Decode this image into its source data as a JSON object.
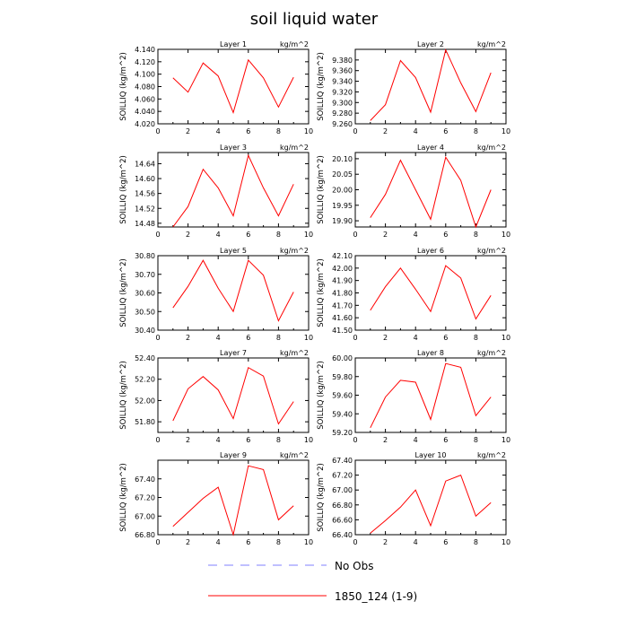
{
  "title": "soil liquid water",
  "chart_data": {
    "type": "line",
    "title": "soil liquid water",
    "ylabel": "SOILLIQ  (kg/m^2)",
    "units": "kg/m^2",
    "xlim": [
      0,
      10
    ],
    "xticks": [
      0,
      2,
      4,
      6,
      8,
      10
    ],
    "x": [
      1,
      2,
      3,
      4,
      5,
      6,
      7,
      8,
      9
    ],
    "grid": false,
    "panels": [
      {
        "title": "Layer 1",
        "ylim": [
          4.02,
          4.14
        ],
        "yticks": [
          4.02,
          4.04,
          4.06,
          4.08,
          4.1,
          4.12,
          4.14
        ],
        "ytick_labels": [
          "4.020",
          "4.040",
          "4.060",
          "4.080",
          "4.100",
          "4.120",
          "4.140"
        ],
        "values": [
          4.094,
          4.071,
          4.118,
          4.097,
          4.038,
          4.123,
          4.094,
          4.047,
          4.095
        ]
      },
      {
        "title": "Layer 2",
        "ylim": [
          9.26,
          9.4
        ],
        "yticks": [
          9.26,
          9.28,
          9.3,
          9.32,
          9.34,
          9.36,
          9.38
        ],
        "ytick_labels": [
          "9.260",
          "9.280",
          "9.300",
          "9.320",
          "9.340",
          "9.360",
          "9.380"
        ],
        "values": [
          9.266,
          9.296,
          9.379,
          9.347,
          9.282,
          9.399,
          9.337,
          9.283,
          9.356
        ]
      },
      {
        "title": "Layer 3",
        "ylim": [
          14.47,
          14.67
        ],
        "yticks": [
          14.48,
          14.52,
          14.56,
          14.6,
          14.64
        ],
        "ytick_labels": [
          "14.48",
          "14.52",
          "14.56",
          "14.60",
          "14.64"
        ],
        "values": [
          14.47,
          14.525,
          14.625,
          14.575,
          14.5,
          14.662,
          14.575,
          14.5,
          14.585
        ]
      },
      {
        "title": "Layer 4",
        "ylim": [
          19.88,
          20.12
        ],
        "yticks": [
          19.9,
          19.95,
          20.0,
          20.05,
          20.1
        ],
        "ytick_labels": [
          "19.90",
          "19.95",
          "20.00",
          "20.05",
          "20.10"
        ],
        "values": [
          19.91,
          19.985,
          20.095,
          20.0,
          19.905,
          20.105,
          20.03,
          19.88,
          20.0
        ]
      },
      {
        "title": "Layer 5",
        "ylim": [
          30.4,
          30.8
        ],
        "yticks": [
          30.4,
          30.5,
          30.6,
          30.7,
          30.8
        ],
        "ytick_labels": [
          "30.40",
          "30.50",
          "30.60",
          "30.70",
          "30.80"
        ],
        "values": [
          30.52,
          30.635,
          30.775,
          30.625,
          30.5,
          30.775,
          30.695,
          30.45,
          30.605
        ]
      },
      {
        "title": "Layer 6",
        "ylim": [
          41.5,
          42.1
        ],
        "yticks": [
          41.5,
          41.6,
          41.7,
          41.8,
          41.9,
          42.0,
          42.1
        ],
        "ytick_labels": [
          "41.50",
          "41.60",
          "41.70",
          "41.80",
          "41.90",
          "42.00",
          "42.10"
        ],
        "values": [
          41.66,
          41.85,
          42.0,
          41.83,
          41.65,
          42.02,
          41.92,
          41.59,
          41.78
        ]
      },
      {
        "title": "Layer 7",
        "ylim": [
          51.7,
          52.4
        ],
        "yticks": [
          51.8,
          52.0,
          52.2,
          52.4
        ],
        "ytick_labels": [
          "51.80",
          "52.00",
          "52.20",
          "52.40"
        ],
        "values": [
          51.81,
          52.11,
          52.225,
          52.1,
          51.83,
          52.31,
          52.23,
          51.78,
          51.99
        ]
      },
      {
        "title": "Layer 8",
        "ylim": [
          59.2,
          60.0
        ],
        "yticks": [
          59.2,
          59.4,
          59.6,
          59.8,
          60.0
        ],
        "ytick_labels": [
          "59.20",
          "59.40",
          "59.60",
          "59.80",
          "60.00"
        ],
        "values": [
          59.25,
          59.58,
          59.76,
          59.74,
          59.34,
          59.94,
          59.9,
          59.38,
          59.58
        ]
      },
      {
        "title": "Layer 9",
        "ylim": [
          66.8,
          67.6
        ],
        "yticks": [
          66.8,
          67.0,
          67.2,
          67.4
        ],
        "ytick_labels": [
          "66.80",
          "67.00",
          "67.20",
          "67.40"
        ],
        "values": [
          66.89,
          67.04,
          67.19,
          67.31,
          66.8,
          67.54,
          67.5,
          66.96,
          67.11
        ]
      },
      {
        "title": "Layer 10",
        "ylim": [
          66.4,
          67.4
        ],
        "yticks": [
          66.4,
          66.6,
          66.8,
          67.0,
          67.2,
          67.4
        ],
        "ytick_labels": [
          "66.40",
          "66.60",
          "66.80",
          "67.00",
          "67.20",
          "67.40"
        ],
        "values": [
          66.42,
          66.59,
          66.77,
          67.0,
          66.52,
          67.12,
          67.2,
          66.65,
          66.83
        ]
      }
    ],
    "series": [
      {
        "name": "1850_124 (1-9)",
        "color": "#ff0000"
      }
    ],
    "legend": {
      "placement": "bottom",
      "entries": [
        {
          "label": "No Obs",
          "color": "#8080ff",
          "style": "dashed"
        },
        {
          "label": "1850_124 (1-9)",
          "color": "#ff0000",
          "style": "solid"
        }
      ]
    }
  }
}
